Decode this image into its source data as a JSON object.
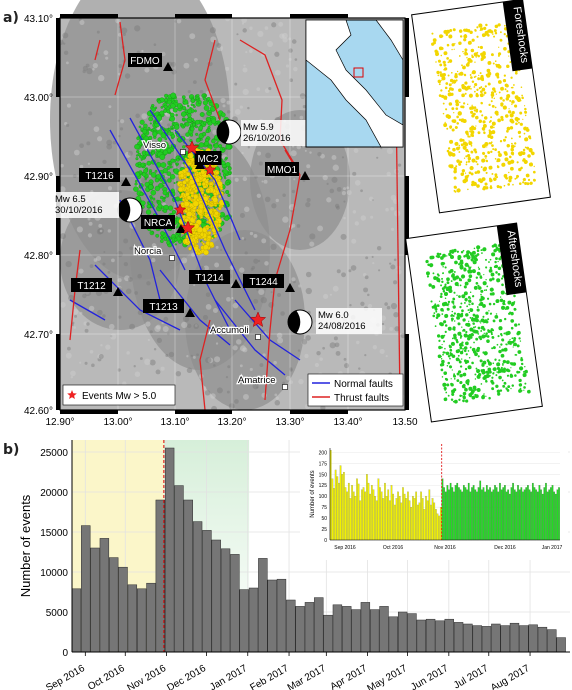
{
  "panel_a": {
    "label": "a)",
    "lat_ticks": [
      "43.10°",
      "43.00°",
      "42.90°",
      "42.80°",
      "42.70°",
      "42.60°"
    ],
    "lon_ticks": [
      "12.90°",
      "13.00°",
      "13.10°",
      "13.20°",
      "13.30°",
      "13.40°",
      "13.50"
    ],
    "stations": [
      {
        "name": "FDMO",
        "type": "station"
      },
      {
        "name": "MC2",
        "type": "station"
      },
      {
        "name": "MMO1",
        "type": "station"
      },
      {
        "name": "T1216",
        "type": "station"
      },
      {
        "name": "NRCA",
        "type": "station"
      },
      {
        "name": "T1214",
        "type": "station"
      },
      {
        "name": "T1244",
        "type": "station"
      },
      {
        "name": "T1212",
        "type": "station"
      },
      {
        "name": "T1213",
        "type": "station"
      }
    ],
    "towns": [
      "Visso",
      "Norcia",
      "Accumoli",
      "Amatrice"
    ],
    "mainshocks": [
      {
        "mag": "Mw 5.9",
        "date": "26/10/2016"
      },
      {
        "mag": "Mw 6.5",
        "date": "30/10/2016"
      },
      {
        "mag": "Mw 6.0",
        "date": "24/08/2016"
      }
    ],
    "legend_left": "Events Mw > 5.0",
    "legend_right": [
      "Normal faults",
      "Thrust faults"
    ],
    "foreshocks_label": "Foreshocks",
    "aftershocks_label": "Aftershocks",
    "colors": {
      "foreshock": "#f2d600",
      "aftershock": "#22cc22",
      "normal_fault": "#2222dd",
      "thrust_fault": "#dd2222",
      "star": "#ee2222"
    }
  },
  "panel_b": {
    "label": "b)",
    "ylabel": "Number of events",
    "yticks": [
      "0",
      "5000",
      "10000",
      "15000",
      "20000",
      "25000"
    ],
    "xticks": [
      "Sep 2016",
      "Oct 2016",
      "Nov 2016",
      "Dec 2016",
      "Jan 2017",
      "Feb 2017",
      "Mar 2017",
      "Apr 2017",
      "May 2017",
      "Jun 2017",
      "Jul 2017",
      "Aug 2017"
    ],
    "inset_ylabel": "Number of events",
    "inset_yticks": [
      "0",
      "25",
      "50",
      "75",
      "100",
      "125",
      "150",
      "175",
      "200"
    ],
    "inset_xticks": [
      "Sep 2016",
      "Oct 2016",
      "Nov 2016",
      "Dec 2016",
      "Jan 2017"
    ]
  },
  "chart_data": [
    {
      "type": "bar",
      "ylabel": "Number of events",
      "ylim": [
        0,
        26500
      ],
      "grid": true,
      "x": [
        "2016-08-22",
        "2016-08-29",
        "2016-09-05",
        "2016-09-12",
        "2016-09-19",
        "2016-09-26",
        "2016-10-03",
        "2016-10-10",
        "2016-10-17",
        "2016-10-24",
        "2016-10-31",
        "2016-11-07",
        "2016-11-14",
        "2016-11-21",
        "2016-11-28",
        "2016-12-05",
        "2016-12-12",
        "2016-12-19",
        "2016-12-26",
        "2017-01-02",
        "2017-01-09",
        "2017-01-16",
        "2017-01-23",
        "2017-01-30",
        "2017-02-06",
        "2017-02-13",
        "2017-02-20",
        "2017-02-27",
        "2017-03-06",
        "2017-03-13",
        "2017-03-20",
        "2017-03-27",
        "2017-04-03",
        "2017-04-10",
        "2017-04-17",
        "2017-04-24",
        "2017-05-01",
        "2017-05-08",
        "2017-05-15",
        "2017-05-22",
        "2017-05-29",
        "2017-06-05",
        "2017-06-12",
        "2017-06-19",
        "2017-06-26",
        "2017-07-03",
        "2017-07-10",
        "2017-07-17",
        "2017-07-24",
        "2017-07-31",
        "2017-08-07",
        "2017-08-14",
        "2017-08-21"
      ],
      "values": [
        7900,
        15800,
        13000,
        14200,
        11800,
        10600,
        8400,
        7900,
        8600,
        19000,
        25500,
        20800,
        19000,
        16300,
        15200,
        14000,
        12900,
        12200,
        7800,
        8000,
        11700,
        9000,
        9100,
        6500,
        5700,
        6200,
        6800,
        4600,
        5900,
        5700,
        5300,
        6200,
        5300,
        5700,
        4400,
        5000,
        4800,
        4000,
        4100,
        3900,
        4100,
        3700,
        3500,
        3300,
        3200,
        3500,
        3300,
        3600,
        3300,
        3400,
        3100,
        2800,
        1800
      ],
      "foreshock_period": [
        "2016-08-22",
        "2016-10-30"
      ],
      "aftershock_highlight": [
        "2016-10-30",
        "2017-01-02"
      ],
      "mainshock_line": "2016-10-30"
    },
    {
      "type": "bar",
      "ylabel": "Number of events",
      "ylim": [
        0,
        210
      ],
      "xlim": [
        "2016-08-24",
        "2017-01-10"
      ],
      "series": [
        {
          "values": [
            205,
            140,
            118,
            160,
            145,
            130,
            170,
            150,
            155,
            120,
            110,
            130,
            95,
            125,
            110,
            100,
            140,
            128,
            90,
            115,
            120,
            110,
            150,
            130,
            105,
            125,
            115,
            100,
            90,
            140,
            120,
            110,
            95,
            130,
            100,
            115,
            90,
            125,
            105,
            80,
            95,
            110,
            100,
            85,
            120,
            105,
            95,
            110,
            90,
            75,
            100,
            95,
            110,
            80,
            85,
            110,
            95,
            70,
            100,
            90,
            115,
            80,
            95,
            85,
            70,
            60,
            55,
            75
          ]
        },
        {
          "values": [
            140,
            120,
            110,
            125,
            115,
            130,
            120,
            110,
            125,
            130,
            120,
            115,
            110,
            125,
            120,
            115,
            130,
            110,
            120,
            125,
            115,
            110,
            120,
            135,
            115,
            120,
            110,
            125,
            115,
            120,
            110,
            115,
            125,
            120,
            110,
            130,
            115,
            120,
            125,
            110,
            115,
            105,
            120,
            130,
            115,
            110,
            125,
            115,
            120,
            110,
            115,
            120,
            125,
            115,
            110,
            130,
            120,
            115,
            110,
            125,
            115,
            105,
            120,
            130,
            110,
            115,
            120,
            125,
            110,
            105,
            115,
            120
          ]
        }
      ],
      "colors": [
        "#f2f200",
        "#22dd22"
      ],
      "mainshock_line": "2016-10-30"
    }
  ]
}
